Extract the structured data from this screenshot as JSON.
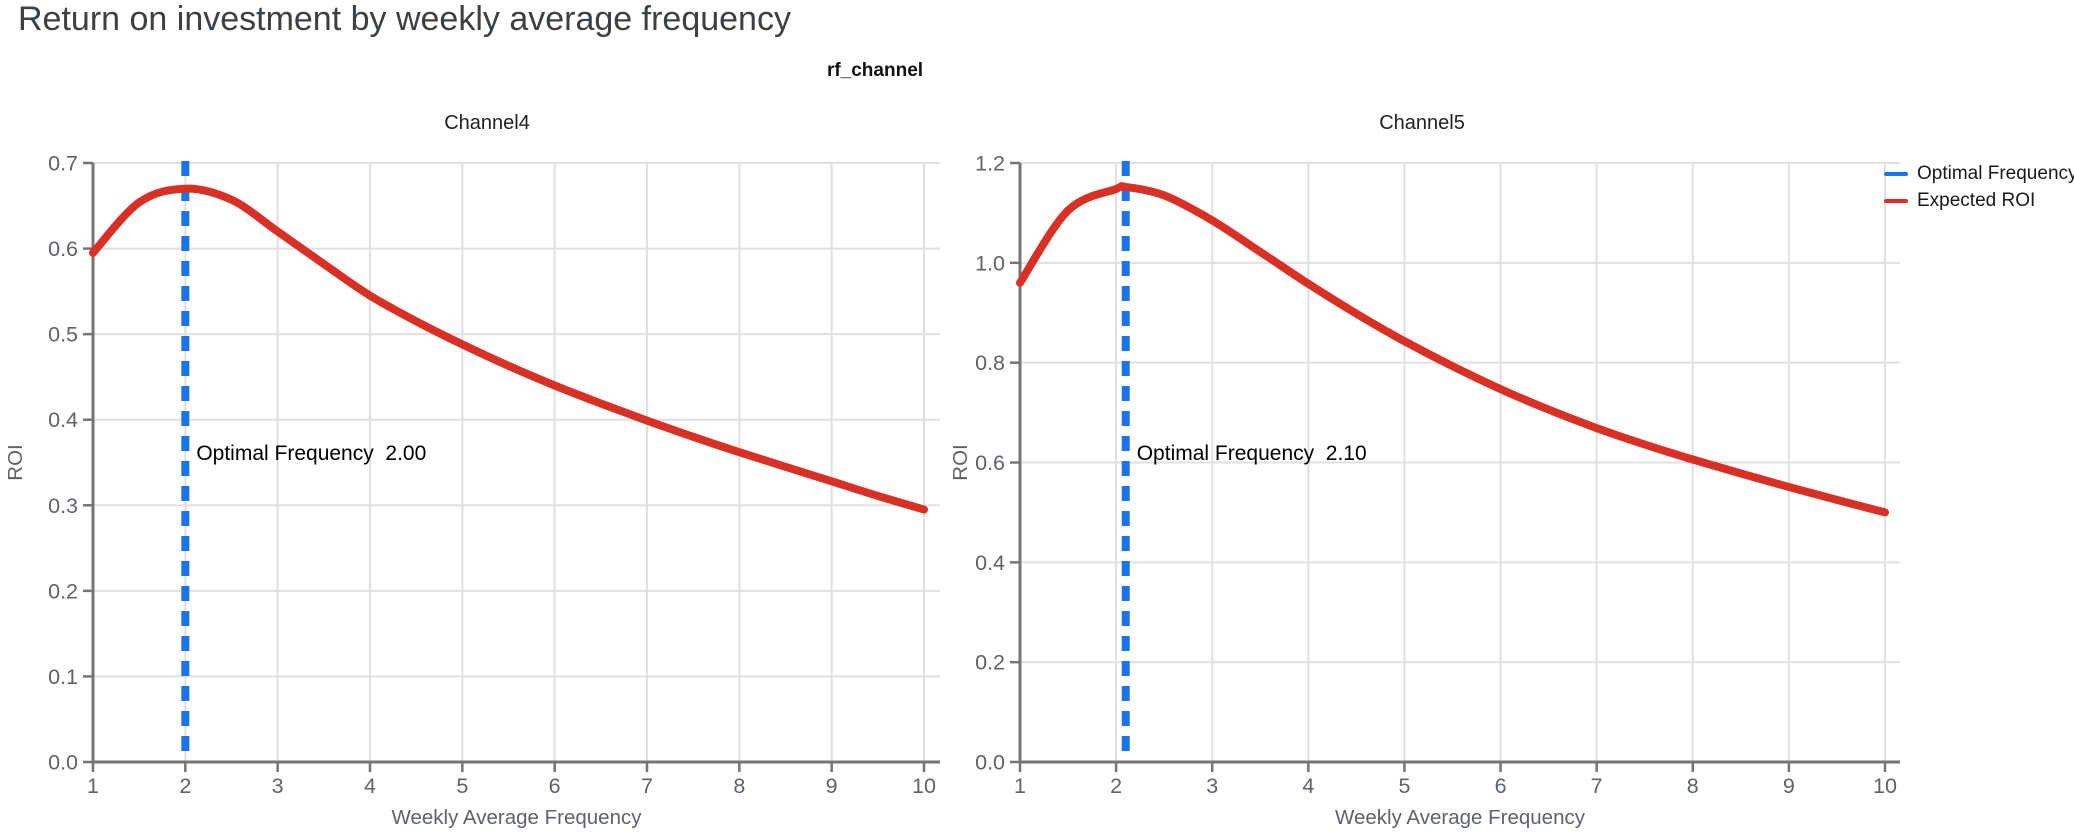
{
  "page": {
    "title": "Return on investment by weekly average frequency"
  },
  "figure": {
    "facet_title": "rf_channel",
    "legend": [
      {
        "label": "Optimal Frequency",
        "color": "#1a73e8"
      },
      {
        "label": "Expected ROI",
        "color": "#d93025"
      }
    ]
  },
  "colors": {
    "grid": "#e0e0e0",
    "axis": "#757575",
    "tick_text": "#5f6368",
    "axis_title_text": "#5f6368",
    "panel_title_text": "#202124",
    "annotation_text": "#000000",
    "expected_roi_line": "#d93025",
    "optimal_frequency_line": "#1a73e8"
  },
  "chart_data": [
    {
      "type": "line",
      "panel_title": "Channel4",
      "xlabel": "Weekly Average Frequency",
      "ylabel": "ROI",
      "xlim": [
        1,
        10
      ],
      "ylim": [
        0,
        0.7
      ],
      "xticks": [
        1,
        2,
        3,
        4,
        5,
        6,
        7,
        8,
        9,
        10
      ],
      "xtick_labels": [
        "1",
        "2",
        "3",
        "4",
        "5",
        "6",
        "7",
        "8",
        "9",
        "10"
      ],
      "ytick_values": [
        0.0,
        0.1,
        0.2,
        0.3,
        0.4,
        0.5,
        0.6,
        0.7
      ],
      "ytick_labels": [
        "0.0",
        "0.1",
        "0.2",
        "0.3",
        "0.4",
        "0.5",
        "0.6",
        "0.7"
      ],
      "grid": true,
      "annotation": "Optimal Frequency  2.00",
      "optimal_frequency": 2.0,
      "vline": {
        "name": "Optimal Frequency",
        "x": 2.0,
        "style": "dashed",
        "color": "#1a73e8"
      },
      "series": [
        {
          "name": "Expected ROI",
          "color": "#d93025",
          "x": [
            1,
            1.5,
            2,
            2.5,
            3,
            3.5,
            4,
            4.5,
            5,
            5.5,
            6,
            6.5,
            7,
            7.5,
            8,
            8.5,
            9,
            9.5,
            10
          ],
          "y": [
            0.595,
            0.654,
            0.67,
            0.657,
            0.62,
            0.582,
            0.545,
            0.515,
            0.488,
            0.463,
            0.44,
            0.419,
            0.399,
            0.38,
            0.362,
            0.345,
            0.328,
            0.311,
            0.295
          ]
        }
      ]
    },
    {
      "type": "line",
      "panel_title": "Channel5",
      "xlabel": "Weekly Average Frequency",
      "ylabel": "ROI",
      "xlim": [
        1,
        10
      ],
      "ylim": [
        0,
        1.2
      ],
      "xticks": [
        1,
        2,
        3,
        4,
        5,
        6,
        7,
        8,
        9,
        10
      ],
      "xtick_labels": [
        "1",
        "2",
        "3",
        "4",
        "5",
        "6",
        "7",
        "8",
        "9",
        "10"
      ],
      "ytick_values": [
        0.0,
        0.2,
        0.4,
        0.6,
        0.8,
        1.0,
        1.2
      ],
      "ytick_labels": [
        "0.0",
        "0.2",
        "0.4",
        "0.6",
        "0.8",
        "1.0",
        "1.2"
      ],
      "grid": true,
      "annotation": "Optimal Frequency  2.10",
      "optimal_frequency": 2.1,
      "vline": {
        "name": "Optimal Frequency",
        "x": 2.1,
        "style": "dashed",
        "color": "#1a73e8"
      },
      "series": [
        {
          "name": "Expected ROI",
          "color": "#d93025",
          "x": [
            1,
            1.5,
            2,
            2.1,
            2.5,
            3,
            3.5,
            4,
            4.5,
            5,
            5.5,
            6,
            6.5,
            7,
            7.5,
            8,
            8.5,
            9,
            9.5,
            10
          ],
          "y": [
            0.96,
            1.105,
            1.148,
            1.152,
            1.135,
            1.085,
            1.022,
            0.958,
            0.898,
            0.843,
            0.793,
            0.747,
            0.706,
            0.669,
            0.636,
            0.606,
            0.578,
            0.551,
            0.525,
            0.5
          ]
        }
      ]
    }
  ]
}
